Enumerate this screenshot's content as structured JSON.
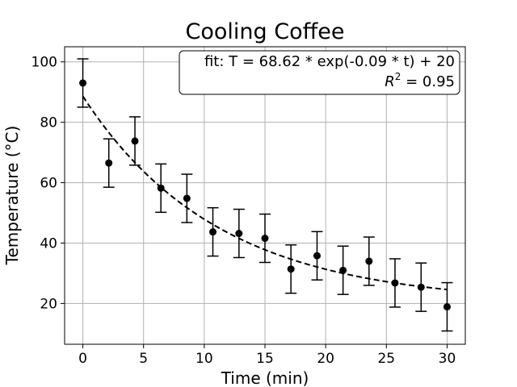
{
  "chart_data": {
    "type": "scatter",
    "title": "Cooling Coffee",
    "xlabel": "Time (min)",
    "ylabel": "Temperature (°C)",
    "xlim": [
      -1.5,
      31.5
    ],
    "ylim": [
      6.5,
      105
    ],
    "xticks": [
      0,
      5,
      10,
      15,
      20,
      25,
      30
    ],
    "yticks": [
      20,
      40,
      60,
      80,
      100
    ],
    "grid": true,
    "series": [
      {
        "type": "scatter",
        "x": [
          0,
          2.14,
          4.29,
          6.43,
          8.57,
          10.71,
          12.86,
          15.0,
          17.14,
          19.29,
          21.43,
          23.57,
          25.71,
          27.86,
          30.0
        ],
        "y": [
          93.0,
          66.5,
          73.8,
          58.2,
          54.8,
          43.7,
          43.2,
          41.6,
          31.4,
          35.8,
          31.0,
          34.0,
          26.8,
          25.4,
          18.9
        ],
        "yerr": 8,
        "color": "#000000"
      },
      {
        "type": "line",
        "style": "dashed",
        "model": {
          "A": 68.62,
          "k": 0.09,
          "C": 20
        },
        "x_range": [
          0,
          30
        ],
        "color": "#000000"
      }
    ],
    "annotation": {
      "line1": "fit: T = 68.62 * exp(-0.09 * t) + 20",
      "line2_var": "R",
      "line2_exp": "2",
      "line2_rest": " = 0.95",
      "placement": "top-right"
    }
  }
}
